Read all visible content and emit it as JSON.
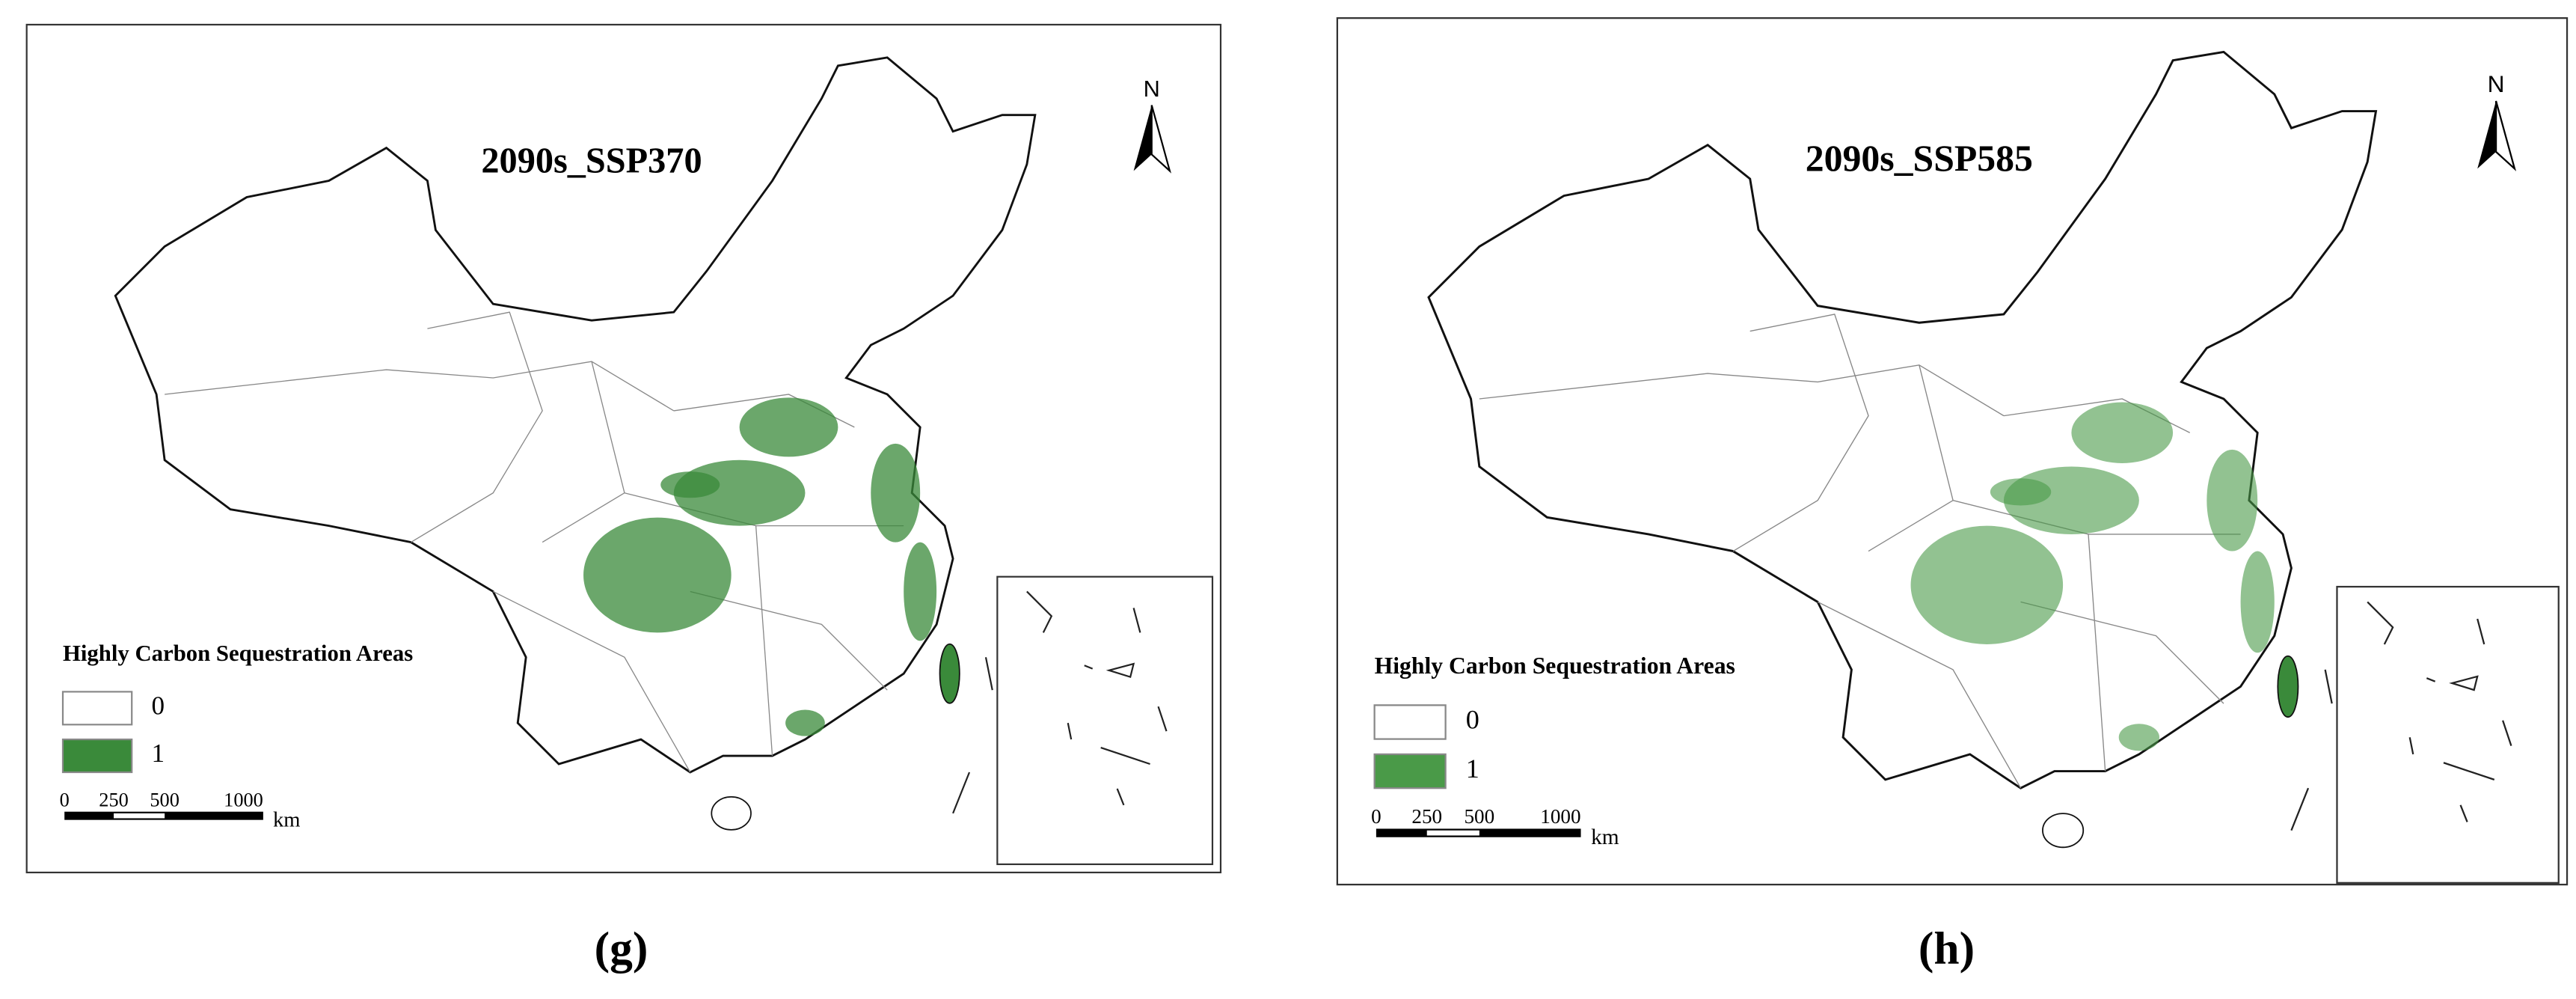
{
  "panels": [
    {
      "title": "2090s_SSP370",
      "north": "N",
      "legend": {
        "title": "Highly Carbon Sequestration Areas",
        "items": [
          0,
          1
        ]
      },
      "scale": {
        "ticks": [
          0,
          250,
          500,
          1000
        ],
        "unit": "km"
      },
      "caption": "(g)"
    },
    {
      "title": "2090s_SSP585",
      "north": "N",
      "legend": {
        "title": "Highly Carbon Sequestration Areas",
        "items": [
          0,
          1
        ]
      },
      "scale": {
        "ticks": [
          0,
          250,
          500,
          1000
        ],
        "unit": "km"
      },
      "caption": "(h)"
    }
  ]
}
